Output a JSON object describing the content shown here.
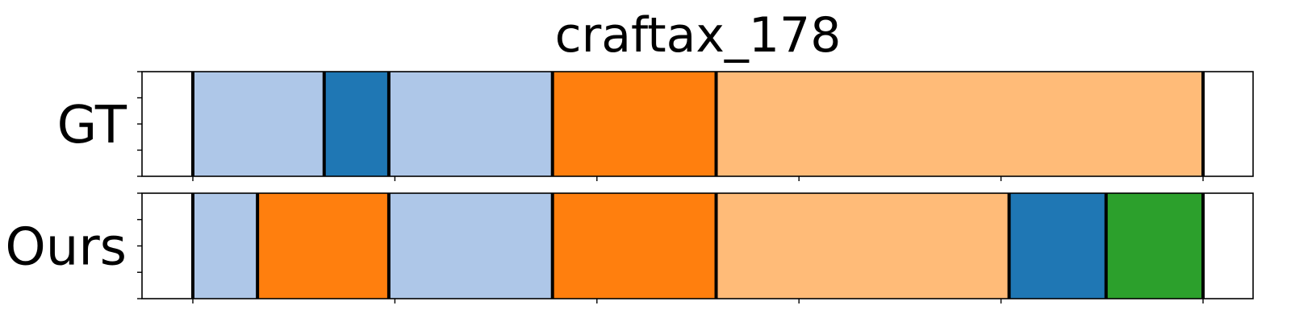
{
  "chart_data": {
    "type": "segmentation-timeline",
    "title": "craftax_178",
    "x_range": [
      0,
      550
    ],
    "x_ticks": [
      0,
      100,
      200,
      300,
      400,
      500
    ],
    "tick_labels_visible": false,
    "colors": {
      "light-blue": "#aec7e8",
      "blue": "#1f77b4",
      "orange": "#ff7f0e",
      "light-orange": "#ffbb78",
      "green": "#2ca02c"
    },
    "rows": [
      {
        "label": "GT",
        "segments": [
          {
            "start": 0,
            "end": 65,
            "color": "light-blue"
          },
          {
            "start": 65,
            "end": 97,
            "color": "blue"
          },
          {
            "start": 97,
            "end": 178,
            "color": "light-blue"
          },
          {
            "start": 178,
            "end": 259,
            "color": "orange"
          },
          {
            "start": 259,
            "end": 500,
            "color": "light-orange"
          }
        ]
      },
      {
        "label": "Ours",
        "segments": [
          {
            "start": 0,
            "end": 32,
            "color": "light-blue"
          },
          {
            "start": 32,
            "end": 97,
            "color": "orange"
          },
          {
            "start": 97,
            "end": 178,
            "color": "light-blue"
          },
          {
            "start": 178,
            "end": 259,
            "color": "orange"
          },
          {
            "start": 259,
            "end": 404,
            "color": "light-orange"
          },
          {
            "start": 404,
            "end": 452,
            "color": "blue"
          },
          {
            "start": 452,
            "end": 500,
            "color": "green"
          }
        ]
      }
    ]
  }
}
